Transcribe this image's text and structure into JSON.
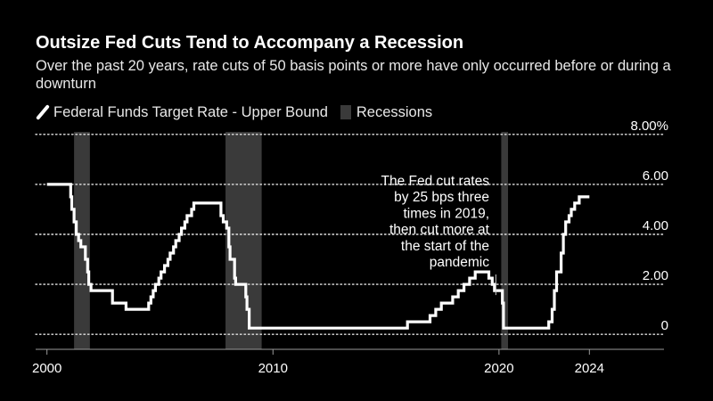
{
  "colors": {
    "background": "#000000",
    "rate_line": "#ffffff",
    "recession": "#3a3a3a",
    "grid": "#e5e5e5",
    "text": "#ffffff"
  },
  "chart_data": {
    "type": "line",
    "title": "Outsize Fed Cuts Tend to Accompany a Recession",
    "subtitle": "Over the past 20 years, rate cuts of 50 basis points or more have only occurred before or during a downturn",
    "xlabel": "",
    "ylabel": "",
    "xlim": [
      1999.5,
      2027.3
    ],
    "ylim": [
      -0.6,
      8.1
    ],
    "x_ticks": [
      2000,
      2010,
      2020,
      2024
    ],
    "x_tick_labels": [
      "2000",
      "2010",
      "2020",
      "2024"
    ],
    "y_ticks": [
      0,
      2,
      4,
      6,
      8
    ],
    "y_tick_labels": [
      "0",
      "2.00",
      "4.00",
      "6.00",
      "8.00%"
    ],
    "grid": "horizontal dotted",
    "legend": {
      "position": "top-left",
      "entries": [
        {
          "label": "Federal Funds Target Rate - Upper Bound",
          "style": "line"
        },
        {
          "label": "Recessions",
          "style": "box"
        }
      ]
    },
    "recessions": [
      {
        "start": 2001.2,
        "end": 2001.9
      },
      {
        "start": 2007.9,
        "end": 2009.5
      },
      {
        "start": 2020.1,
        "end": 2020.4
      }
    ],
    "annotation": {
      "lines": [
        "The Fed cut rates",
        "by 25 bps three",
        "times in 2019,",
        "then cut more at",
        "the start of the",
        "pandemic"
      ],
      "point": [
        2019.9,
        1.5
      ]
    },
    "series": [
      {
        "name": "Federal Funds Target Rate - Upper Bound",
        "step": true,
        "points": [
          [
            2000.0,
            6.0
          ],
          [
            2000.15,
            6.0
          ],
          [
            2000.3,
            6.0
          ],
          [
            2000.35,
            6.0
          ],
          [
            2000.65,
            6.0
          ],
          [
            2000.7,
            6.0
          ],
          [
            2001.0,
            6.0
          ],
          [
            2001.05,
            5.5
          ],
          [
            2001.1,
            5.0
          ],
          [
            2001.2,
            4.5
          ],
          [
            2001.3,
            4.0
          ],
          [
            2001.4,
            3.75
          ],
          [
            2001.5,
            3.5
          ],
          [
            2001.6,
            3.5
          ],
          [
            2001.7,
            3.0
          ],
          [
            2001.8,
            2.5
          ],
          [
            2001.85,
            2.0
          ],
          [
            2001.95,
            1.75
          ],
          [
            2002.9,
            1.25
          ],
          [
            2003.5,
            1.0
          ],
          [
            2004.5,
            1.25
          ],
          [
            2004.6,
            1.5
          ],
          [
            2004.7,
            1.75
          ],
          [
            2004.8,
            2.0
          ],
          [
            2004.95,
            2.25
          ],
          [
            2005.05,
            2.5
          ],
          [
            2005.2,
            2.75
          ],
          [
            2005.35,
            3.0
          ],
          [
            2005.45,
            3.25
          ],
          [
            2005.6,
            3.5
          ],
          [
            2005.7,
            3.75
          ],
          [
            2005.85,
            4.0
          ],
          [
            2005.95,
            4.25
          ],
          [
            2006.1,
            4.5
          ],
          [
            2006.2,
            4.75
          ],
          [
            2006.4,
            5.0
          ],
          [
            2006.5,
            5.25
          ],
          [
            2007.7,
            4.75
          ],
          [
            2007.8,
            4.5
          ],
          [
            2007.95,
            4.25
          ],
          [
            2008.05,
            3.5
          ],
          [
            2008.1,
            3.0
          ],
          [
            2008.3,
            2.25
          ],
          [
            2008.35,
            2.0
          ],
          [
            2008.8,
            1.5
          ],
          [
            2008.85,
            1.0
          ],
          [
            2008.95,
            0.25
          ],
          [
            2015.95,
            0.5
          ],
          [
            2016.95,
            0.75
          ],
          [
            2017.2,
            1.0
          ],
          [
            2017.45,
            1.25
          ],
          [
            2017.95,
            1.5
          ],
          [
            2018.2,
            1.75
          ],
          [
            2018.45,
            2.0
          ],
          [
            2018.7,
            2.25
          ],
          [
            2018.95,
            2.5
          ],
          [
            2019.55,
            2.25
          ],
          [
            2019.7,
            2.0
          ],
          [
            2019.8,
            1.75
          ],
          [
            2020.15,
            1.25
          ],
          [
            2020.2,
            0.25
          ],
          [
            2022.2,
            0.5
          ],
          [
            2022.35,
            1.0
          ],
          [
            2022.45,
            1.75
          ],
          [
            2022.55,
            2.5
          ],
          [
            2022.75,
            3.25
          ],
          [
            2022.85,
            4.0
          ],
          [
            2022.95,
            4.5
          ],
          [
            2023.1,
            4.75
          ],
          [
            2023.2,
            5.0
          ],
          [
            2023.35,
            5.25
          ],
          [
            2023.55,
            5.5
          ],
          [
            2024.0,
            5.5
          ]
        ]
      }
    ]
  }
}
